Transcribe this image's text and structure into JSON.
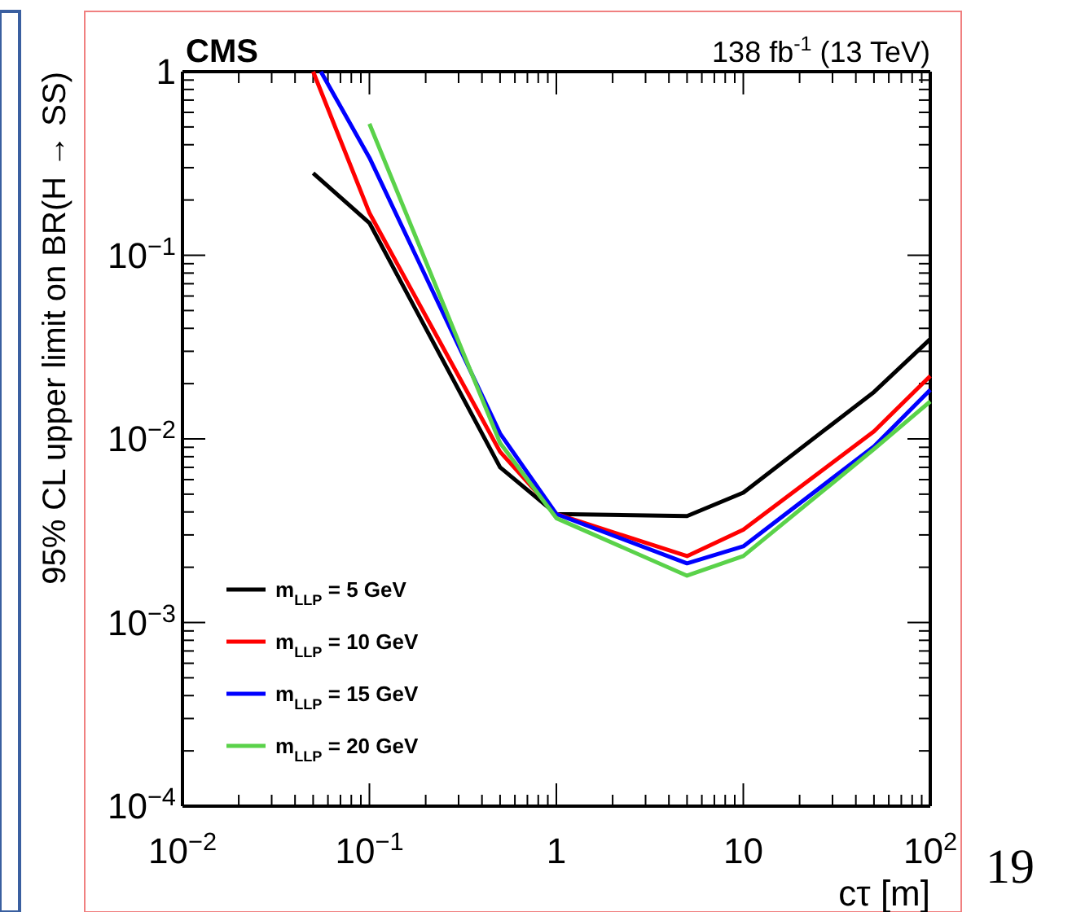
{
  "chart_data": {
    "type": "line",
    "title": "CMS",
    "subtitle": "138 fb$^{-1}$ (13 TeV)",
    "xlabel": "cτ [m]",
    "ylabel": "95% CL upper limit on BR(H → SS)",
    "annotations": [
      "19"
    ],
    "log": "xy",
    "legend": "bottom left",
    "grid": false,
    "marker": "none",
    "line_style": "solid",
    "xlim": [
      0.01,
      100
    ],
    "ylim": [
      0.0001,
      1
    ],
    "xticks": [
      {
        "value": 0.01,
        "label": "10$^{−2}$"
      },
      {
        "value": 0.02,
        "label": null
      },
      {
        "value": 0.03,
        "label": null
      },
      {
        "value": 0.04,
        "label": null
      },
      {
        "value": 0.05,
        "label": null
      },
      {
        "value": 0.06,
        "label": null
      },
      {
        "value": 0.07,
        "label": null
      },
      {
        "value": 0.08,
        "label": null
      },
      {
        "value": 0.09,
        "label": null
      },
      {
        "value": 0.1,
        "label": "10$^{−1}$"
      },
      {
        "value": 0.2,
        "label": null
      },
      {
        "value": 0.3,
        "label": null
      },
      {
        "value": 0.4,
        "label": null
      },
      {
        "value": 0.5,
        "label": null
      },
      {
        "value": 0.6,
        "label": null
      },
      {
        "value": 0.7,
        "label": null
      },
      {
        "value": 0.8,
        "label": null
      },
      {
        "value": 0.9,
        "label": null
      },
      1,
      {
        "value": 2,
        "label": null
      },
      {
        "value": 3,
        "label": null
      },
      {
        "value": 4,
        "label": null
      },
      {
        "value": 5,
        "label": null
      },
      {
        "value": 6,
        "label": null
      },
      {
        "value": 7,
        "label": null
      },
      {
        "value": 8,
        "label": null
      },
      {
        "value": 9,
        "label": null
      },
      10,
      {
        "value": 20,
        "label": null
      },
      {
        "value": 30,
        "label": null
      },
      {
        "value": 40,
        "label": null
      },
      {
        "value": 50,
        "label": null
      },
      {
        "value": 60,
        "label": null
      },
      {
        "value": 70,
        "label": null
      },
      {
        "value": 80,
        "label": null
      },
      {
        "value": 90,
        "label": null
      },
      {
        "value": 100,
        "label": "10$^{2}$"
      }
    ],
    "yticks": [
      {
        "value": 0.0001,
        "label": "10$^{−4}$"
      },
      {
        "value": 0.0002,
        "label": null
      },
      {
        "value": 0.0003,
        "label": null
      },
      {
        "value": 0.0004,
        "label": null
      },
      {
        "value": 0.0005,
        "label": null
      },
      {
        "value": 0.0006,
        "label": null
      },
      {
        "value": 0.0007,
        "label": null
      },
      {
        "value": 0.0008,
        "label": null
      },
      {
        "value": 0.0009,
        "label": null
      },
      {
        "value": 0.001,
        "label": "10$^{−3}$"
      },
      {
        "value": 0.002,
        "label": null
      },
      {
        "value": 0.003,
        "label": null
      },
      {
        "value": 0.004,
        "label": null
      },
      {
        "value": 0.005,
        "label": null
      },
      {
        "value": 0.006,
        "label": null
      },
      {
        "value": 0.007,
        "label": null
      },
      {
        "value": 0.008,
        "label": null
      },
      {
        "value": 0.009,
        "label": null
      },
      {
        "value": 0.01,
        "label": "10$^{−2}$"
      },
      {
        "value": 0.02,
        "label": null
      },
      {
        "value": 0.03,
        "label": null
      },
      {
        "value": 0.04,
        "label": null
      },
      {
        "value": 0.05,
        "label": null
      },
      {
        "value": 0.06,
        "label": null
      },
      {
        "value": 0.07,
        "label": null
      },
      {
        "value": 0.08,
        "label": null
      },
      {
        "value": 0.09,
        "label": null
      },
      {
        "value": 0.1,
        "label": "10$^{−1}$"
      },
      {
        "value": 0.2,
        "label": null
      },
      {
        "value": 0.3,
        "label": null
      },
      {
        "value": 0.4,
        "label": null
      },
      {
        "value": 0.5,
        "label": null
      },
      {
        "value": 0.6,
        "label": null
      },
      {
        "value": 0.7,
        "label": null
      },
      {
        "value": 0.8,
        "label": null
      },
      {
        "value": 0.9,
        "label": null
      },
      1
    ],
    "series": [
      {
        "name": "m$_{LLP}$ = 5 GeV",
        "color": "#000000",
        "x": [
          0.05,
          0.1,
          0.5,
          1,
          5,
          10,
          50,
          100
        ],
        "values": [
          0.28,
          0.15,
          0.007,
          0.0039,
          0.0038,
          0.0051,
          0.018,
          0.035
        ]
      },
      {
        "name": "m$_{LLP}$ = 10 GeV",
        "color": "#ff0000",
        "x": [
          0.05,
          0.1,
          0.5,
          1,
          5,
          10,
          50,
          100
        ],
        "values": [
          1,
          0.17,
          0.0085,
          0.0039,
          0.0023,
          0.0032,
          0.011,
          0.022
        ]
      },
      {
        "name": "m$_{LLP}$ = 15 GeV",
        "color": "#0000ff",
        "x": [
          0.055,
          0.1,
          0.5,
          1,
          5,
          10,
          50,
          100
        ],
        "values": [
          1,
          0.34,
          0.0107,
          0.0039,
          0.0021,
          0.0026,
          0.0091,
          0.0185
        ]
      },
      {
        "name": "m$_{LLP}$ = 20 GeV",
        "color": "#5ad24a",
        "x": [
          0.1,
          0.5,
          1,
          5,
          10,
          50,
          100
        ],
        "values": [
          0.52,
          0.0095,
          0.0037,
          0.0018,
          0.0023,
          0.0088,
          0.016
        ]
      }
    ]
  }
}
